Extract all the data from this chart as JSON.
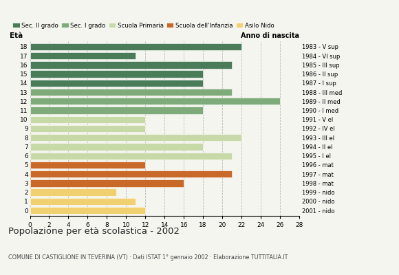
{
  "ages": [
    0,
    1,
    2,
    3,
    4,
    5,
    6,
    7,
    8,
    9,
    10,
    11,
    12,
    13,
    14,
    15,
    16,
    17,
    18
  ],
  "values": [
    12,
    11,
    9,
    16,
    21,
    12,
    21,
    18,
    22,
    12,
    12,
    18,
    26,
    21,
    18,
    18,
    21,
    11,
    22
  ],
  "right_labels": [
    "2001 - nido",
    "2000 - nido",
    "1999 - nido",
    "1998 - mat",
    "1997 - mat",
    "1996 - mat",
    "1995 - I el",
    "1994 - II el",
    "1993 - III el",
    "1992 - IV el",
    "1991 - V el",
    "1990 - I med",
    "1989 - II med",
    "1988 - III med",
    "1987 - I sup",
    "1986 - II sup",
    "1985 - III sup",
    "1984 - VI sup",
    "1983 - V sup"
  ],
  "legend_labels": [
    "Sec. II grado",
    "Sec. I grado",
    "Scuola Primaria",
    "Scuola dell'Infanzia",
    "Asilo Nido"
  ],
  "legend_colors": [
    "#4a7c59",
    "#7fab7a",
    "#c8d9a8",
    "#c8692a",
    "#f0d070"
  ],
  "bar_colors": [
    "#f0d070",
    "#f0d070",
    "#f0d070",
    "#c8692a",
    "#c8692a",
    "#c8692a",
    "#c8d9a8",
    "#c8d9a8",
    "#c8d9a8",
    "#c8d9a8",
    "#c8d9a8",
    "#7fab7a",
    "#7fab7a",
    "#7fab7a",
    "#4a7c59",
    "#4a7c59",
    "#4a7c59",
    "#4a7c59",
    "#4a7c59"
  ],
  "title": "Popolazione per età scolastica - 2002",
  "subtitle": "COMUNE DI CASTIGLIONE IN TEVERINA (VT) · Dati ISTAT 1° gennaio 2002 · Elaborazione TUTTITALIA.IT",
  "label_eta": "Età",
  "label_anno": "Anno di nascita",
  "xlim": [
    0,
    28
  ],
  "xticks": [
    0,
    2,
    4,
    6,
    8,
    10,
    12,
    14,
    16,
    18,
    20,
    22,
    24,
    26,
    28
  ],
  "background_color": "#f5f5f0",
  "grid_color": "#bbbbbb"
}
